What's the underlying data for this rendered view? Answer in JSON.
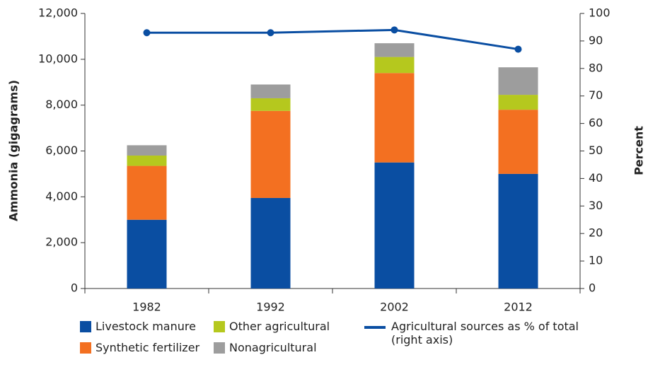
{
  "chart_data": {
    "type": "bar",
    "categories": [
      "1982",
      "1992",
      "2002",
      "2012"
    ],
    "y_label": "Ammonia (gigagrams)",
    "y2_label": "Percent",
    "ylim": [
      0,
      12000
    ],
    "yticks": [
      0,
      {
        "value": 2000,
        "label": "2,000"
      },
      {
        "value": 4000,
        "label": "4,000"
      },
      {
        "value": 6000,
        "label": "6,000"
      },
      {
        "value": 8000,
        "label": "8,000"
      },
      {
        "value": 10000,
        "label": "10,000"
      },
      {
        "value": 12000,
        "label": "12,000"
      }
    ],
    "y2lim": [
      0,
      100
    ],
    "y2ticks": [
      0,
      10,
      20,
      30,
      40,
      50,
      60,
      70,
      80,
      90,
      100
    ],
    "stacked": true,
    "series": [
      {
        "name": "Livestock manure",
        "color": "#0a4ea2",
        "values": [
          3000,
          3950,
          5500,
          5000
        ]
      },
      {
        "name": "Synthetic fertilizer",
        "color": "#f37021",
        "values": [
          2350,
          3800,
          3900,
          2800
        ]
      },
      {
        "name": "Other agricultural",
        "color": "#b5c81e",
        "values": [
          450,
          550,
          700,
          650
        ]
      },
      {
        "name": "Nonagricultural",
        "color": "#9d9d9d",
        "values": [
          450,
          600,
          600,
          1200
        ]
      },
      {
        "name": "Agricultural sources as % of total (right axis)",
        "type": "line",
        "axis": "y2",
        "color": "#0a4ea2",
        "values": [
          93,
          93,
          94,
          87
        ]
      }
    ]
  }
}
